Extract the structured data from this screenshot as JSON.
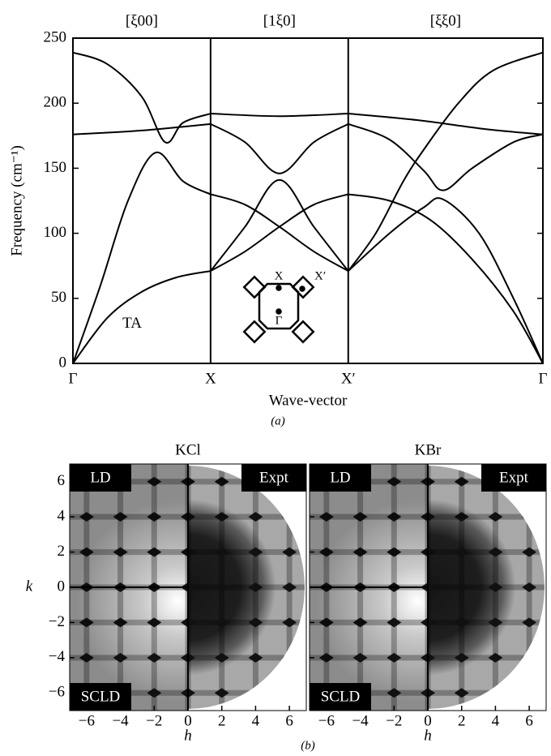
{
  "chart_data": [
    {
      "type": "line",
      "segment_labels": [
        "[ξ00]",
        "[1ξ0]",
        "[ξξ0]"
      ],
      "xlabel": "Wave-vector",
      "ylabel": "Frequency (cm⁻¹)",
      "annotation": "TA",
      "inset_labels": [
        "X",
        "X′",
        "Γ"
      ],
      "xlim": [
        0,
        3.414
      ],
      "xticks": [
        {
          "value": 0,
          "label": "Γ"
        },
        {
          "value": 1,
          "label": "X"
        },
        {
          "value": 2,
          "label": "X′"
        },
        {
          "value": 3.414,
          "label": "Γ"
        }
      ],
      "ylim": [
        0,
        250
      ],
      "yticks": [
        0,
        50,
        100,
        150,
        200,
        250
      ],
      "grid": true,
      "color": "#000000",
      "series": [
        {
          "x": [
            0,
            0.25,
            0.5,
            0.75,
            1
          ],
          "values": [
            0,
            35,
            55,
            66,
            71
          ]
        },
        {
          "x": [
            0,
            0.2,
            0.4,
            0.6,
            0.8,
            1
          ],
          "values": [
            0,
            60,
            125,
            162,
            140,
            130
          ]
        },
        {
          "x": [
            0,
            0.25,
            0.5,
            0.67,
            0.8,
            1
          ],
          "values": [
            239,
            230,
            205,
            170,
            185,
            192
          ]
        },
        {
          "x": [
            0,
            0.5,
            1
          ],
          "values": [
            176,
            179,
            184
          ]
        },
        {
          "x": [
            1,
            1.5,
            2
          ],
          "values": [
            192,
            190,
            192
          ]
        },
        {
          "x": [
            1,
            1.25,
            1.5,
            1.75,
            2
          ],
          "values": [
            184,
            170,
            146,
            170,
            184
          ]
        },
        {
          "x": [
            1,
            1.25,
            1.5,
            1.75,
            2
          ],
          "values": [
            71,
            105,
            141,
            105,
            71
          ]
        },
        {
          "x": [
            1,
            1.25,
            1.5,
            1.75,
            2
          ],
          "values": [
            130,
            122,
            105,
            86,
            71
          ]
        },
        {
          "x": [
            1,
            1.25,
            1.5,
            1.75,
            2
          ],
          "values": [
            71,
            86,
            105,
            122,
            130
          ]
        },
        {
          "x": [
            2,
            2.5,
            3,
            3.414
          ],
          "values": [
            192,
            187,
            180,
            176
          ]
        },
        {
          "x": [
            2,
            2.3,
            2.55,
            2.69,
            2.9,
            3.2,
            3.414
          ],
          "values": [
            184,
            172,
            148,
            133,
            150,
            170,
            176
          ]
        },
        {
          "x": [
            2,
            2.2,
            2.4,
            2.56,
            2.8,
            3.05,
            3.414
          ],
          "values": [
            71,
            100,
            140,
            166,
            200,
            225,
            239
          ]
        },
        {
          "x": [
            2,
            2.3,
            2.55,
            2.69,
            2.95,
            3.2,
            3.414
          ],
          "values": [
            71,
            100,
            120,
            126,
            100,
            50,
            0
          ]
        },
        {
          "x": [
            2,
            2.3,
            2.6,
            2.9,
            3.2,
            3.414
          ],
          "values": [
            130,
            125,
            110,
            80,
            40,
            0
          ]
        }
      ]
    },
    {
      "type": "image",
      "title": "KCl",
      "xlabel": "h",
      "ylabel": "k",
      "xlim": [
        -7,
        7
      ],
      "ylim": [
        -7,
        7
      ],
      "xticks": [
        {
          "value": -6,
          "label": "−6"
        },
        {
          "value": -4,
          "label": "−4"
        },
        {
          "value": -2,
          "label": "−2"
        },
        0,
        2,
        4,
        6
      ],
      "yticks": [
        {
          "value": -6,
          "label": "−6"
        },
        {
          "value": -4,
          "label": "−4"
        },
        {
          "value": -2,
          "label": "−2"
        },
        0,
        2,
        4,
        6
      ],
      "panel_labels": [
        "LD",
        "Expt",
        "SCLD"
      ]
    },
    {
      "type": "image",
      "title": "KBr",
      "xlabel": "h",
      "xlim": [
        -7,
        7
      ],
      "ylim": [
        -7,
        7
      ],
      "xticks": [
        {
          "value": -6,
          "label": "−6"
        },
        {
          "value": -4,
          "label": "−4"
        },
        {
          "value": -2,
          "label": "−2"
        },
        0,
        2,
        4,
        6
      ],
      "yticks": [
        -6,
        -4,
        -2,
        0,
        2,
        4,
        6
      ],
      "panel_labels": [
        "LD",
        "Expt",
        "SCLD"
      ]
    }
  ],
  "captions": [
    "(a)",
    "(b)"
  ]
}
